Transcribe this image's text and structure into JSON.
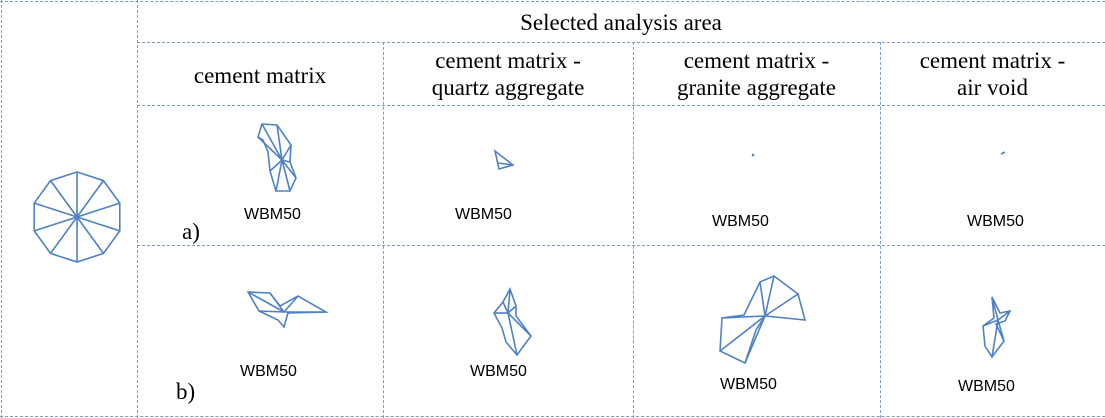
{
  "header": {
    "title": "Selected analysis area"
  },
  "columns": [
    {
      "lines": [
        "cement matrix"
      ]
    },
    {
      "lines": [
        "cement matrix -",
        "quartz aggregate"
      ]
    },
    {
      "lines": [
        "cement matrix -",
        "granite aggregate"
      ]
    },
    {
      "lines": [
        "cement matrix -",
        "air void"
      ]
    }
  ],
  "rows": [
    {
      "label": "a)",
      "cells": [
        "WBM50",
        "WBM50",
        "WBM50",
        "WBM50"
      ]
    },
    {
      "label": "b)",
      "cells": [
        "WBM50",
        "WBM50",
        "WBM50",
        "WBM50"
      ]
    }
  ]
}
